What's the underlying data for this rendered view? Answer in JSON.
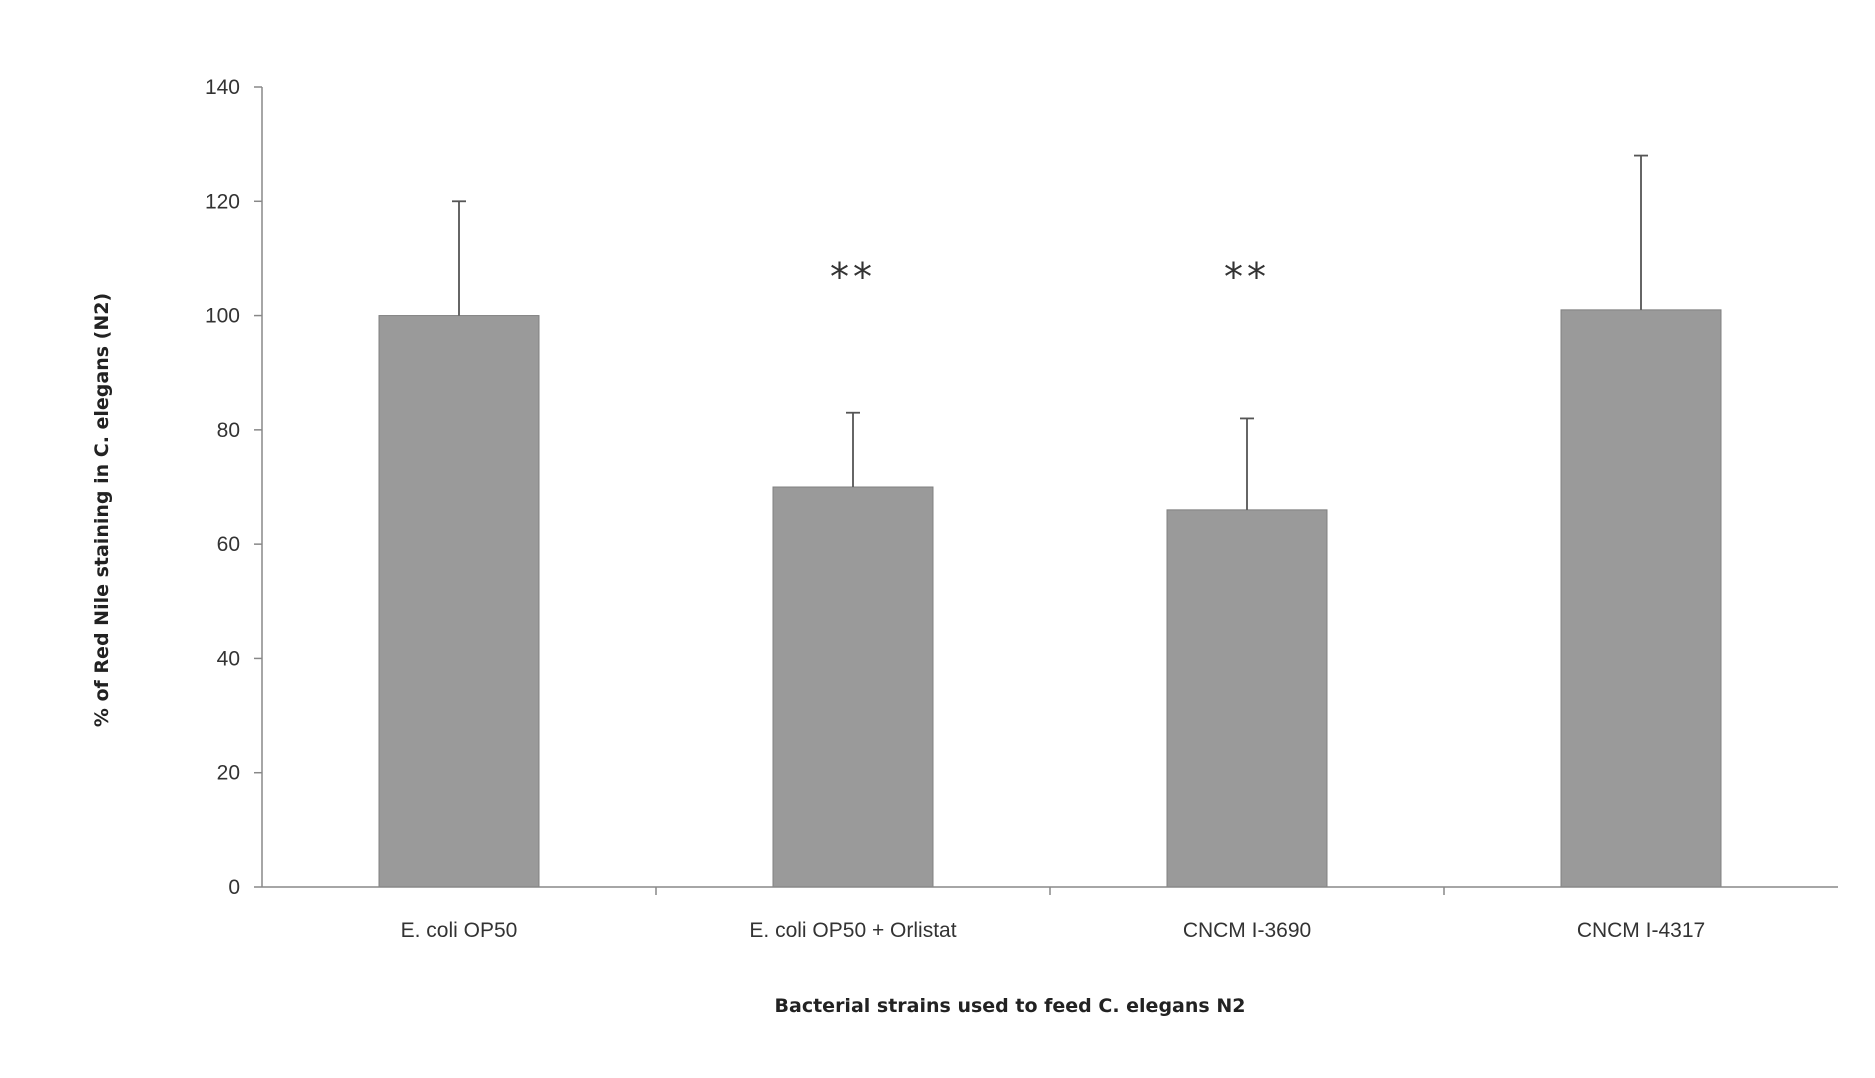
{
  "chart_data": {
    "type": "bar",
    "title": "",
    "xlabel": "Bacterial strains used to feed C. elegans N2",
    "ylabel": "% of Red Nile staining in C. elegans (N2)",
    "ylim": [
      0,
      140
    ],
    "yticks": [
      "0",
      "20",
      "40",
      "60",
      "80",
      "100",
      "120",
      "140"
    ],
    "categories": [
      "E. coli OP50",
      "E. coli OP50 + Orlistat",
      "CNCM I-3690",
      "CNCM I-4317"
    ],
    "values": [
      100,
      70,
      66,
      101
    ],
    "error_upper": [
      120,
      83,
      82,
      128
    ],
    "annotations": [
      "",
      "**",
      "**",
      ""
    ],
    "bar_color": "#9a9a9a",
    "grid": false,
    "legend": "none"
  }
}
